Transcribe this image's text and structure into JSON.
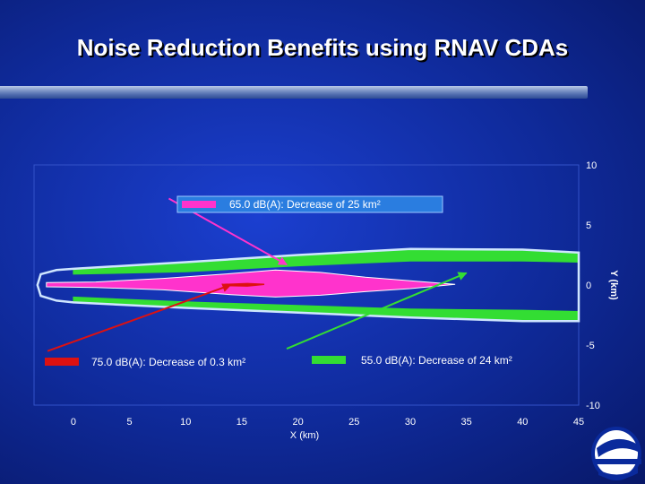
{
  "slide": {
    "title": "Noise Reduction Benefits using RNAV CDAs"
  },
  "colors": {
    "contour_65": "#ff33cc",
    "contour_55": "#33dd33",
    "contour_75": "#dd1111",
    "baseline_outline": "#cfe6ff"
  },
  "chart_data": {
    "type": "area",
    "title": "",
    "xlabel": "X (km)",
    "ylabel": "Y (km)",
    "xlim": [
      -3.5,
      45
    ],
    "ylim": [
      -10,
      10
    ],
    "xticks": [
      0,
      5,
      10,
      15,
      20,
      25,
      30,
      35,
      40,
      45
    ],
    "yticks": [
      10,
      5,
      0,
      -5,
      -10
    ],
    "legend": [
      {
        "label": "65.0 dB(A): Decrease of 25 km²",
        "color": "#ff33cc",
        "pointer_from": [
          8.5,
          7.2
        ],
        "pointer_to": [
          19,
          1.7
        ]
      },
      {
        "label": "75.0 dB(A): Decrease of 0.3 km²",
        "color": "#dd1111",
        "pointer_from": [
          -2.3,
          -5.5
        ],
        "pointer_to": [
          14,
          0
        ]
      },
      {
        "label": "55.0 dB(A): Decrease of 24 km²",
        "color": "#33dd33",
        "pointer_from": [
          19,
          -5.3
        ],
        "pointer_to": [
          35,
          1
        ]
      }
    ],
    "series": [
      {
        "name": "55 dB(A) removed area (green)",
        "color": "#33dd33",
        "points": [
          [
            0,
            1.25
          ],
          [
            10,
            1.8
          ],
          [
            20,
            2.4
          ],
          [
            30,
            2.9
          ],
          [
            40,
            2.85
          ],
          [
            45,
            2.6
          ],
          [
            45,
            1.9
          ],
          [
            40,
            2.0
          ],
          [
            30,
            2.0
          ],
          [
            20,
            1.6
          ],
          [
            10,
            1.1
          ],
          [
            0,
            0.9
          ],
          [
            0,
            -1.0
          ],
          [
            10,
            -1.4
          ],
          [
            20,
            -1.7
          ],
          [
            30,
            -2.0
          ],
          [
            40,
            -2.1
          ],
          [
            45,
            -2.2
          ],
          [
            45,
            -2.9
          ],
          [
            40,
            -2.9
          ],
          [
            30,
            -2.6
          ],
          [
            20,
            -2.2
          ],
          [
            10,
            -1.8
          ],
          [
            0,
            -1.35
          ]
        ]
      },
      {
        "name": "55 dB(A) baseline contour (outline)",
        "color": "#cfe6ff",
        "points": [
          [
            -2.9,
            0.9
          ],
          [
            -1.5,
            1.25
          ],
          [
            0,
            1.35
          ],
          [
            10,
            1.9
          ],
          [
            20,
            2.5
          ],
          [
            30,
            3.0
          ],
          [
            40,
            2.95
          ],
          [
            45,
            2.7
          ],
          [
            45,
            -3.0
          ],
          [
            40,
            -3.0
          ],
          [
            30,
            -2.7
          ],
          [
            20,
            -2.3
          ],
          [
            10,
            -1.9
          ],
          [
            0,
            -1.45
          ],
          [
            -1.5,
            -1.3
          ],
          [
            -2.9,
            -0.9
          ],
          [
            -3.2,
            0
          ]
        ]
      },
      {
        "name": "65 dB(A) removed area (magenta)",
        "color": "#ff33cc",
        "points": [
          [
            -2.4,
            0.2
          ],
          [
            2,
            0.25
          ],
          [
            8,
            0.55
          ],
          [
            14,
            0.95
          ],
          [
            18,
            1.25
          ],
          [
            22,
            1.05
          ],
          [
            26,
            0.65
          ],
          [
            30,
            0.35
          ],
          [
            34,
            0.05
          ],
          [
            30,
            -0.3
          ],
          [
            26,
            -0.55
          ],
          [
            22,
            -0.85
          ],
          [
            18,
            -1.0
          ],
          [
            14,
            -0.8
          ],
          [
            8,
            -0.4
          ],
          [
            2,
            -0.2
          ],
          [
            -2.4,
            -0.15
          ]
        ]
      },
      {
        "name": "75 dB(A) contour (red)",
        "color": "#dd1111",
        "points": [
          [
            13.5,
            0.05
          ],
          [
            15.5,
            0.12
          ],
          [
            17,
            0.05
          ],
          [
            15.5,
            -0.08
          ],
          [
            13.5,
            -0.04
          ]
        ]
      }
    ]
  }
}
